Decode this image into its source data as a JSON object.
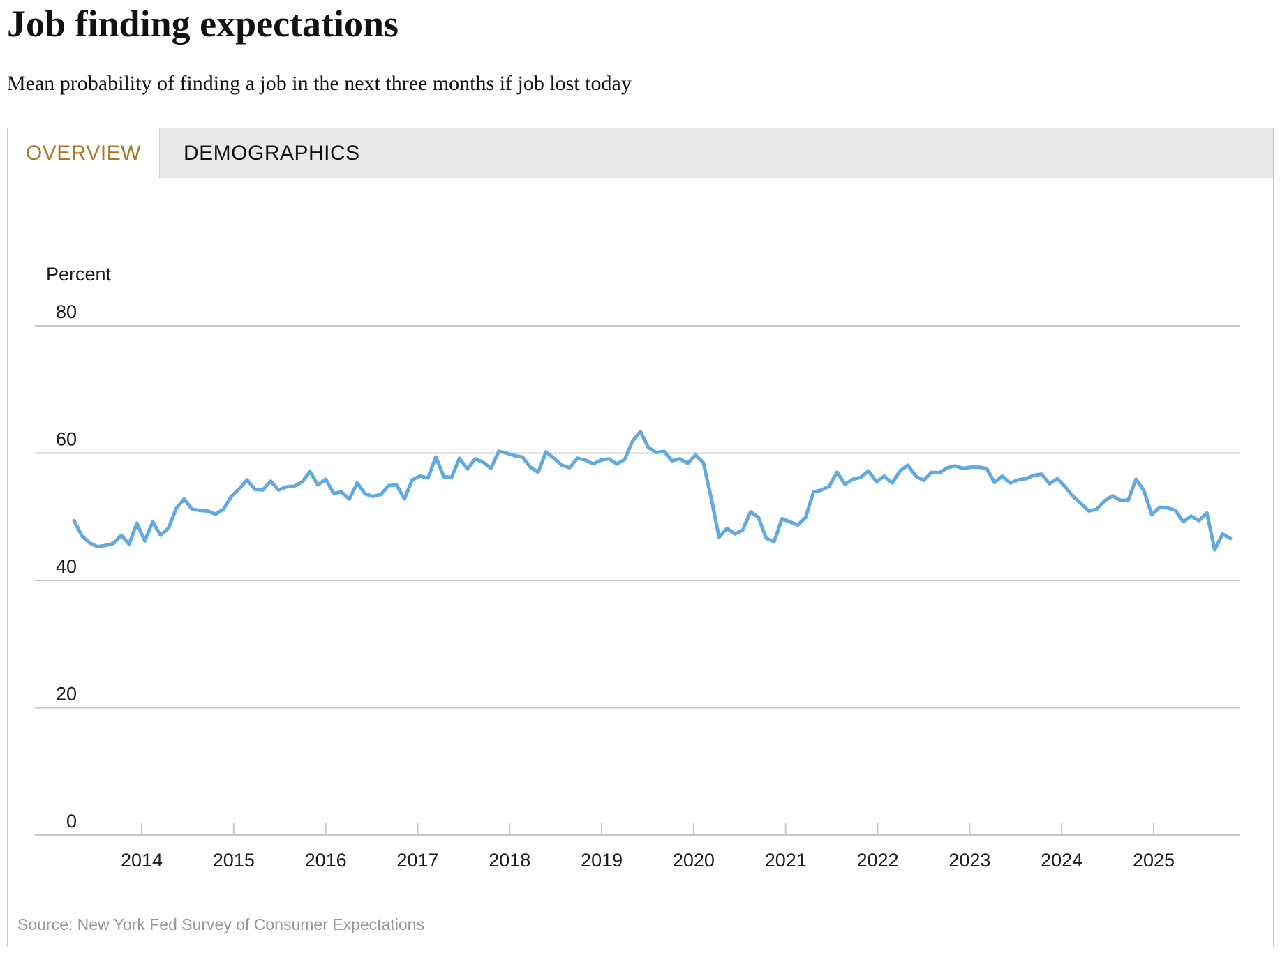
{
  "header": {
    "title": "Job finding expectations",
    "subtitle": "Mean probability of finding a job in the next three months if job lost today"
  },
  "tabs": [
    {
      "id": "overview",
      "label": "OVERVIEW",
      "active": true
    },
    {
      "id": "demographics",
      "label": "DEMOGRAPHICS",
      "active": false
    }
  ],
  "source": "Source: New York Fed Survey of Consumer Expectations",
  "colors": {
    "line": "#61a9de",
    "grid": "#c7c7c7",
    "axis_text": "#1a1a1a",
    "tab_active_text": "#a5782c",
    "tab_strip_bg": "#e9e9e9",
    "panel_border": "#c9c9c9",
    "source_text": "#979797"
  },
  "chart_data": {
    "type": "line",
    "title": "Job finding expectations",
    "ylabel": "Percent",
    "yticks": [
      0,
      20,
      40,
      60,
      80
    ],
    "ylim": [
      0,
      88
    ],
    "grid": "horizontal",
    "legend": "none",
    "x_start": "2013-06",
    "x_end": "2025-09",
    "frequency": "monthly",
    "xticklabels": [
      "2014",
      "2015",
      "2016",
      "2017",
      "2018",
      "2019",
      "2020",
      "2021",
      "2022",
      "2023",
      "2024",
      "2025"
    ],
    "series": [
      {
        "name": "Mean probability of finding a job in the next three months if job lost today (percent)",
        "values": [
          49.4,
          47.0,
          45.9,
          45.3,
          45.5,
          45.8,
          47.1,
          45.7,
          49.0,
          46.2,
          49.2,
          47.1,
          48.2,
          51.3,
          52.8,
          51.2,
          51.0,
          50.9,
          50.4,
          51.2,
          53.2,
          54.4,
          55.8,
          54.3,
          54.2,
          55.6,
          54.2,
          54.7,
          54.8,
          55.5,
          57.1,
          55.0,
          55.9,
          53.7,
          53.9,
          52.8,
          55.3,
          53.6,
          53.2,
          53.5,
          54.9,
          55.0,
          52.8,
          55.8,
          56.4,
          56.1,
          59.4,
          56.3,
          56.2,
          59.2,
          57.5,
          59.1,
          58.6,
          57.6,
          60.3,
          60.0,
          59.6,
          59.4,
          57.8,
          57.0,
          60.2,
          59.2,
          58.1,
          57.7,
          59.2,
          58.9,
          58.3,
          58.9,
          59.1,
          58.3,
          59.0,
          61.9,
          63.4,
          60.9,
          60.1,
          60.3,
          58.8,
          59.1,
          58.4,
          59.7,
          58.5,
          53.0,
          46.8,
          48.2,
          47.3,
          47.9,
          50.8,
          49.9,
          46.6,
          46.1,
          49.7,
          49.2,
          48.7,
          49.9,
          53.9,
          54.2,
          54.8,
          57.0,
          55.1,
          55.9,
          56.2,
          57.2,
          55.5,
          56.4,
          55.3,
          57.2,
          58.1,
          56.4,
          55.7,
          57.0,
          56.9,
          57.7,
          58.0,
          57.6,
          57.8,
          57.8,
          57.6,
          55.4,
          56.4,
          55.3,
          55.8,
          56.0,
          56.5,
          56.7,
          55.2,
          56.0,
          54.7,
          53.2,
          52.1,
          50.9,
          51.2,
          52.5,
          53.3,
          52.6,
          52.6,
          55.9,
          54.1,
          50.3,
          51.5,
          51.4,
          51.0,
          49.2,
          50.1,
          49.4,
          50.6,
          44.8,
          47.3,
          46.6
        ]
      }
    ]
  }
}
